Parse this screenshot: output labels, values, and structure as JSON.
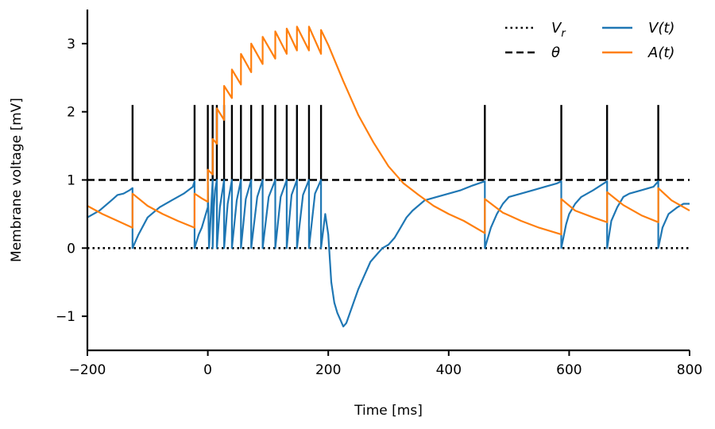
{
  "chart_data": {
    "type": "line",
    "title": "",
    "xlabel": "Time [ms]",
    "ylabel": "Membrane voltage [mV]",
    "xlim": [
      -200,
      800
    ],
    "ylim": [
      -1.5,
      3.5
    ],
    "xticks": [
      -200,
      0,
      200,
      400,
      600,
      800
    ],
    "xtick_labels": [
      "−200",
      "0",
      "200",
      "400",
      "600",
      "800"
    ],
    "yticks": [
      -1,
      0,
      1,
      2,
      3
    ],
    "ytick_labels": [
      "−1",
      "0",
      "1",
      "2",
      "3"
    ],
    "grid": false,
    "legend_placement": "top-right",
    "reference_lines": [
      {
        "name": "V_r",
        "legend_label": "V",
        "legend_sub": "r",
        "y": 0,
        "style": "dotted",
        "color": "#000000"
      },
      {
        "name": "theta",
        "legend_label": "θ",
        "legend_sub": "",
        "y": 1,
        "style": "dashed",
        "color": "#000000"
      }
    ],
    "spike_times": [
      -125,
      -22,
      0,
      8,
      15,
      27,
      40,
      55,
      72,
      91,
      112,
      131,
      148,
      168,
      188,
      460,
      587,
      663,
      748
    ],
    "spike_marker_range": [
      1,
      2.1
    ],
    "series": [
      {
        "name": "V(t)",
        "color": "#1f77b4",
        "x": [
          -200,
          -180,
          -160,
          -150,
          -140,
          -130,
          -125,
          -125,
          -115,
          -100,
          -80,
          -60,
          -40,
          -25,
          -22,
          -22,
          -15,
          -10,
          -5,
          0,
          0,
          2,
          5,
          8,
          8,
          10,
          12,
          15,
          15,
          20,
          27,
          27,
          33,
          40,
          40,
          48,
          55,
          55,
          63,
          72,
          72,
          82,
          91,
          91,
          101,
          112,
          112,
          121,
          131,
          131,
          139,
          148,
          148,
          158,
          168,
          168,
          178,
          188,
          188,
          195,
          200,
          205,
          210,
          215,
          220,
          225,
          230,
          240,
          250,
          260,
          270,
          280,
          290,
          300,
          310,
          320,
          330,
          340,
          360,
          380,
          400,
          420,
          440,
          460,
          460,
          470,
          480,
          490,
          500,
          520,
          540,
          560,
          580,
          587,
          587,
          595,
          600,
          610,
          620,
          640,
          663,
          663,
          670,
          680,
          690,
          700,
          720,
          740,
          748,
          748,
          755,
          765,
          780,
          790,
          800
        ],
        "y": [
          0.45,
          0.55,
          0.7,
          0.78,
          0.8,
          0.85,
          0.88,
          0,
          0.2,
          0.45,
          0.6,
          0.7,
          0.8,
          0.9,
          0.98,
          0,
          0.2,
          0.3,
          0.45,
          0.6,
          0.98,
          0,
          0.5,
          1.0,
          0,
          0.6,
          0.85,
          1.0,
          0,
          0.6,
          1.0,
          0,
          0.65,
          1.0,
          0,
          0.7,
          1.0,
          0,
          0.72,
          1.0,
          0,
          0.75,
          1.0,
          0,
          0.75,
          1.0,
          0,
          0.75,
          1.0,
          0,
          0.78,
          1.0,
          0,
          0.78,
          1.0,
          0,
          0.8,
          1.0,
          0,
          0.5,
          0.2,
          -0.5,
          -0.8,
          -0.95,
          -1.05,
          -1.15,
          -1.1,
          -0.85,
          -0.6,
          -0.4,
          -0.2,
          -0.1,
          0.0,
          0.05,
          0.15,
          0.3,
          0.45,
          0.55,
          0.7,
          0.75,
          0.8,
          0.85,
          0.92,
          0.98,
          0,
          0.3,
          0.5,
          0.65,
          0.75,
          0.8,
          0.85,
          0.9,
          0.95,
          0.98,
          0,
          0.35,
          0.5,
          0.65,
          0.75,
          0.85,
          0.98,
          0,
          0.4,
          0.6,
          0.75,
          0.8,
          0.85,
          0.9,
          0.98,
          0,
          0.3,
          0.5,
          0.6,
          0.65,
          0.65
        ]
      },
      {
        "name": "A(t)",
        "color": "#ff7f0e",
        "x": [
          -200,
          -175,
          -150,
          -125,
          -125,
          -100,
          -75,
          -50,
          -22,
          -22,
          -10,
          0,
          0,
          8,
          8,
          15,
          15,
          27,
          27,
          40,
          40,
          55,
          55,
          72,
          72,
          91,
          91,
          112,
          112,
          131,
          131,
          148,
          148,
          168,
          168,
          188,
          188,
          200,
          225,
          250,
          275,
          300,
          325,
          350,
          375,
          400,
          425,
          460,
          460,
          490,
          520,
          550,
          587,
          587,
          610,
          640,
          663,
          663,
          690,
          720,
          748,
          748,
          770,
          800
        ],
        "y": [
          0.62,
          0.5,
          0.4,
          0.3,
          0.8,
          0.62,
          0.5,
          0.4,
          0.3,
          0.8,
          0.73,
          0.68,
          1.15,
          1.08,
          1.6,
          1.53,
          2.05,
          1.88,
          2.38,
          2.2,
          2.62,
          2.4,
          2.85,
          2.58,
          3.0,
          2.7,
          3.1,
          2.78,
          3.18,
          2.85,
          3.22,
          2.9,
          3.25,
          2.9,
          3.25,
          2.85,
          3.2,
          2.98,
          2.45,
          1.95,
          1.55,
          1.2,
          0.95,
          0.78,
          0.62,
          0.5,
          0.4,
          0.22,
          0.72,
          0.52,
          0.4,
          0.3,
          0.2,
          0.72,
          0.55,
          0.45,
          0.38,
          0.82,
          0.63,
          0.48,
          0.38,
          0.88,
          0.7,
          0.55
        ]
      }
    ]
  }
}
